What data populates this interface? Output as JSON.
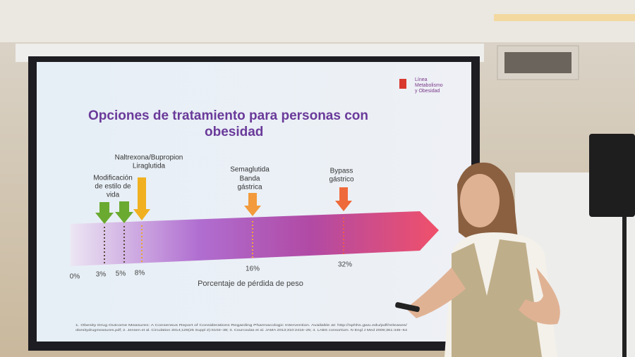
{
  "slide": {
    "logo": [
      "Línea",
      "Metabolismo",
      "y Obesidad"
    ],
    "title": [
      "Opciones de tratamiento para personas con",
      "obesidad"
    ],
    "treatments": [
      {
        "label": [
          "Modificación",
          "de estilo de",
          "vida"
        ]
      },
      {
        "label": [
          "Naltrexona/Bupropion",
          "Liraglutida"
        ]
      },
      {
        "label": [
          "Semaglutida",
          "Banda",
          "gástrica"
        ]
      },
      {
        "label": [
          "Bypass",
          "gástrico"
        ]
      }
    ],
    "ticks": [
      "0%",
      "3%",
      "5%",
      "8%",
      "16%",
      "32%"
    ],
    "axis_label": "Porcentaje de pérdida de peso",
    "footnote": [
      "1. Obesity Drug Outcome Measures: A Consensus Report of Considerations Regarding Pharmacologic Intervention. Available at: http://sphhs.gwu.edu/pdf/releases/",
      "obesitydrugmeasures.pdf; 2. Jensen et al. Circulation 2014;129(25 Suppl 2):S102–38; 3. Courcoulas et al. JAMA 2013;310:2416–25; 4. LABS consortium. N Engl J Med 2009;361:445–54"
    ]
  }
}
